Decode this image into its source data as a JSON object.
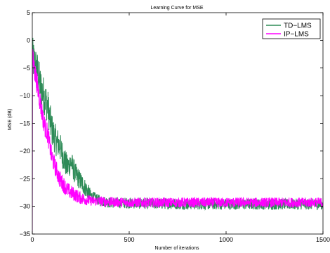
{
  "chart_data": {
    "type": "line",
    "title": "Learning Curve for MSE",
    "xlabel": "Number of iterations",
    "ylabel": "MSE (dB)",
    "xlim": [
      0,
      1500
    ],
    "ylim": [
      -35,
      5
    ],
    "xticks": [
      0,
      500,
      1000,
      1500
    ],
    "yticks": [
      5,
      0,
      -5,
      -10,
      -15,
      -20,
      -25,
      -30,
      -35
    ],
    "grid": false,
    "legend_position": "top-right",
    "series": [
      {
        "name": "TD−LMS",
        "color": "#2e8b57",
        "noise_amplitude": 1.0,
        "x": [
          0,
          10,
          20,
          30,
          40,
          50,
          60,
          70,
          80,
          90,
          100,
          120,
          140,
          160,
          180,
          200,
          220,
          240,
          260,
          280,
          300,
          350,
          400,
          500,
          600,
          700,
          800,
          900,
          1000,
          1100,
          1200,
          1300,
          1400,
          1500
        ],
        "y": [
          -3,
          -4,
          -5,
          -6,
          -8,
          -9,
          -10,
          -11,
          -12,
          -14,
          -16,
          -18,
          -19,
          -21,
          -23,
          -22,
          -24,
          -25,
          -26,
          -27,
          -28,
          -29,
          -29.3,
          -29.4,
          -29.5,
          -29.5,
          -29.6,
          -29.6,
          -29.6,
          -29.6,
          -29.6,
          -29.6,
          -29.6,
          -29.6
        ]
      },
      {
        "name": "IP−LMS",
        "color": "#ff00ff",
        "noise_amplitude": 0.9,
        "x": [
          0,
          10,
          20,
          30,
          40,
          50,
          60,
          70,
          80,
          90,
          100,
          120,
          140,
          160,
          180,
          200,
          250,
          300,
          400,
          500,
          600,
          700,
          800,
          900,
          1000,
          1100,
          1200,
          1300,
          1400,
          1500
        ],
        "y": [
          -3,
          -5,
          -7,
          -9,
          -11,
          -13,
          -15,
          -16,
          -17,
          -19,
          -21,
          -23,
          -25,
          -26,
          -27,
          -27.5,
          -28.5,
          -29,
          -29.2,
          -29.3,
          -29.3,
          -29.3,
          -29.3,
          -29.3,
          -29.3,
          -29.3,
          -29.3,
          -29.3,
          -29.3,
          -29.3
        ]
      }
    ]
  }
}
